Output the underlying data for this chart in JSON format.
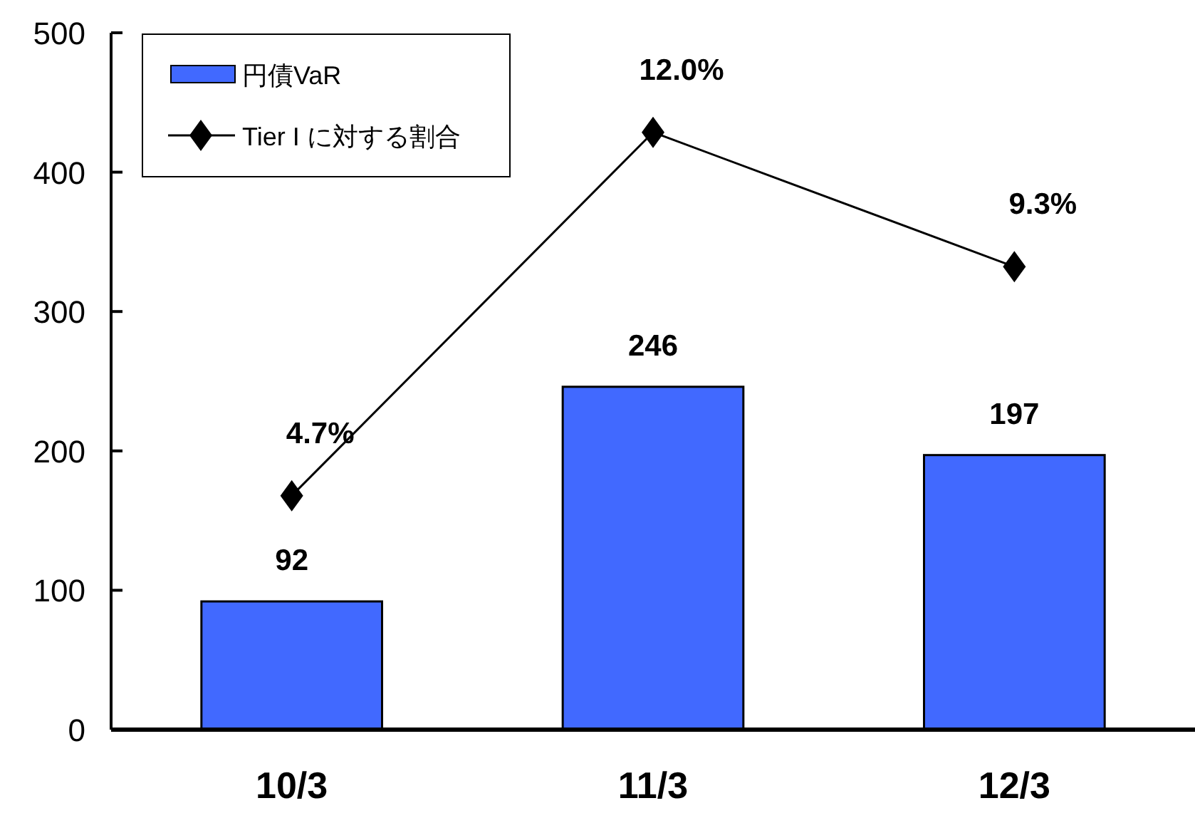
{
  "chart_data": {
    "type": "bar",
    "categories": [
      "10/3",
      "11/3",
      "12/3"
    ],
    "series": [
      {
        "name": "円債VaR",
        "color": "#4169ff",
        "values": [
          92,
          246,
          197
        ],
        "value_labels": [
          "92",
          "246",
          "197"
        ]
      },
      {
        "name": "Tier I に対する割合",
        "type": "line",
        "axis": "y2",
        "color": "#000000",
        "marker": "diamond",
        "values": [
          4.7,
          12.0,
          9.3
        ],
        "value_labels": [
          "4.7%",
          "12.0%",
          "9.3%"
        ]
      }
    ],
    "ylim": [
      0,
      500
    ],
    "yticks": [
      0,
      100,
      200,
      300,
      400,
      500
    ],
    "y2lim": [
      0,
      14
    ],
    "tick_labels": "x_y",
    "grid": false,
    "legend": "top left"
  }
}
